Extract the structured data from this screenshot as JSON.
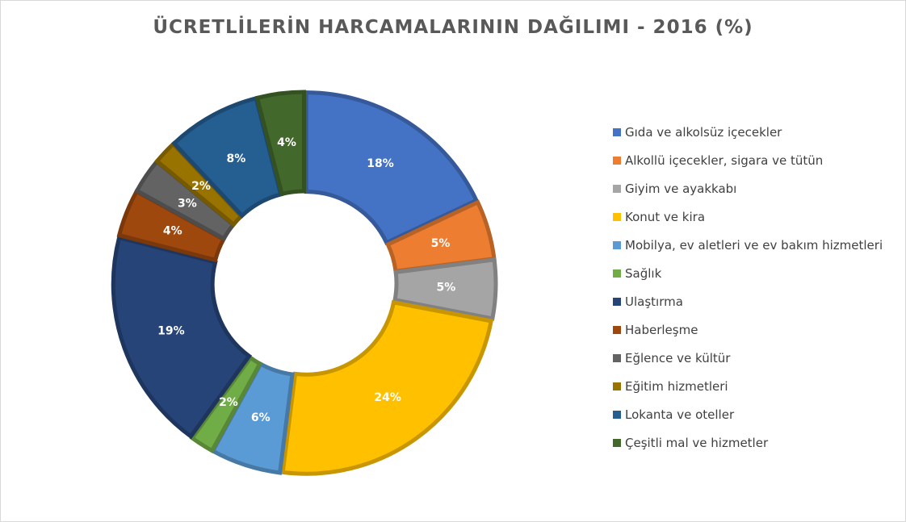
{
  "chart_data": {
    "type": "pie",
    "subtype": "donut",
    "title": "ÜCRETLİLERİN HARCAMALARININ DAĞILIMI - 2016 (%)",
    "legend_position": "right",
    "series": [
      {
        "name": "Gıda ve alkolsüz içecekler",
        "value": 18,
        "label": "18%",
        "color": "#4472C4"
      },
      {
        "name": "Alkollü içecekler, sigara ve tütün",
        "value": 5,
        "label": "5%",
        "color": "#ED7D31"
      },
      {
        "name": "Giyim ve ayakkabı",
        "value": 5,
        "label": "5%",
        "color": "#A5A5A5"
      },
      {
        "name": "Konut ve kira",
        "value": 24,
        "label": "24%",
        "color": "#FFC000"
      },
      {
        "name": "Mobilya, ev aletleri ve ev bakım hizmetleri",
        "value": 6,
        "label": "6%",
        "color": "#5B9BD5"
      },
      {
        "name": "Sağlık",
        "value": 2,
        "label": "2%",
        "color": "#70AD47"
      },
      {
        "name": "Ulaştırma",
        "value": 19,
        "label": "19%",
        "color": "#264478"
      },
      {
        "name": "Haberleşme",
        "value": 4,
        "label": "4%",
        "color": "#9E480E"
      },
      {
        "name": "Eğlence ve kültür",
        "value": 3,
        "label": "3%",
        "color": "#636363"
      },
      {
        "name": "Eğitim hizmetleri",
        "value": 2,
        "label": "2%",
        "color": "#997300"
      },
      {
        "name": "Lokanta ve oteller",
        "value": 8,
        "label": "8%",
        "color": "#255E91"
      },
      {
        "name": "Çeşitli mal ve hizmetler",
        "value": 4,
        "label": "4%",
        "color": "#43682B"
      }
    ]
  }
}
